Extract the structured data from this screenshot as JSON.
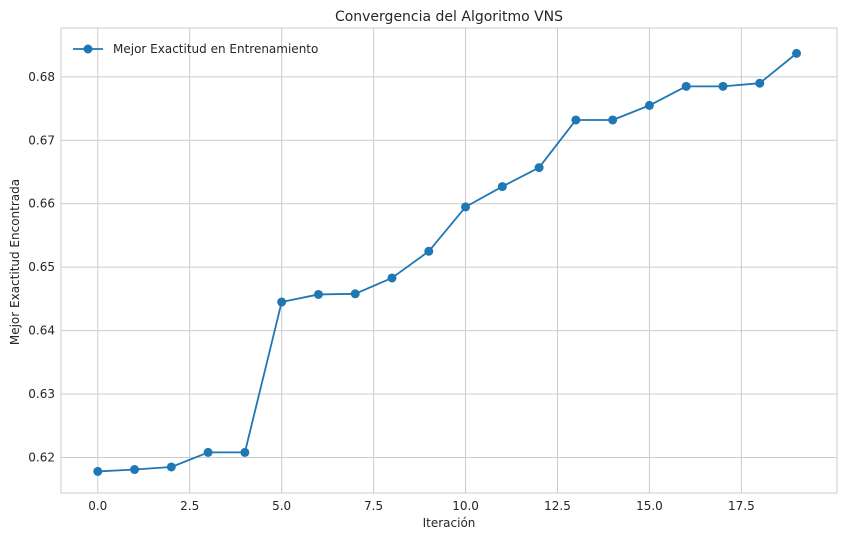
{
  "chart_data": {
    "type": "line",
    "title": "Convergencia del Algoritmo VNS",
    "xlabel": "Iteración",
    "ylabel": "Mejor Exactitud Encontrada",
    "xlim": [
      -1,
      20.1
    ],
    "ylim": [
      0.6144,
      0.6877
    ],
    "x_ticks": [
      0.0,
      2.5,
      5.0,
      7.5,
      10.0,
      12.5,
      15.0,
      17.5
    ],
    "x_tick_labels": [
      "0.0",
      "2.5",
      "5.0",
      "7.5",
      "10.0",
      "12.5",
      "15.0",
      "17.5"
    ],
    "y_ticks": [
      0.62,
      0.63,
      0.64,
      0.65,
      0.66,
      0.67,
      0.68
    ],
    "y_tick_labels": [
      "0.62",
      "0.63",
      "0.64",
      "0.65",
      "0.66",
      "0.67",
      "0.68"
    ],
    "grid": true,
    "legend_position": "top-left",
    "series": [
      {
        "name": "Mejor Exactitud en Entrenamiento",
        "color": "#1f77b4",
        "marker": "circle",
        "x": [
          0,
          1,
          2,
          3,
          4,
          5,
          6,
          7,
          8,
          9,
          10,
          11,
          12,
          13,
          14,
          15,
          16,
          17,
          18,
          19
        ],
        "y": [
          0.6178,
          0.6181,
          0.6185,
          0.6208,
          0.6208,
          0.6445,
          0.6457,
          0.6458,
          0.6483,
          0.6525,
          0.6595,
          0.6627,
          0.6657,
          0.6732,
          0.6732,
          0.6755,
          0.6785,
          0.6785,
          0.679,
          0.6837
        ]
      }
    ]
  }
}
